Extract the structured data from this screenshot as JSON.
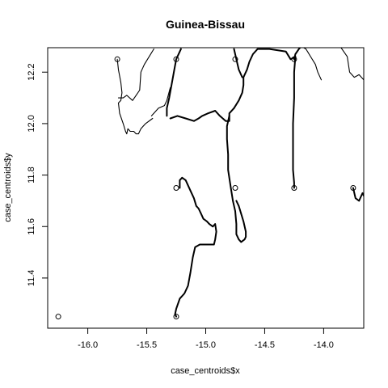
{
  "chart_data": {
    "type": "scatter",
    "title": "Guinea-Bissau",
    "xlabel": "case_centroids$x",
    "ylabel": "case_centroids$y",
    "xlim": [
      -16.34,
      -13.66
    ],
    "ylim": [
      11.205,
      12.295
    ],
    "x_ticks": [
      -16.0,
      -15.5,
      -15.0,
      -14.5,
      -14.0
    ],
    "x_tick_labels": [
      "-16.0",
      "-15.5",
      "-15.0",
      "-14.5",
      "-14.0"
    ],
    "y_ticks": [
      11.4,
      11.6,
      11.8,
      12.0,
      12.2
    ],
    "y_tick_labels": [
      "11.4",
      "11.6",
      "11.8",
      "12.0",
      "12.2"
    ],
    "points": [
      {
        "x": -15.75,
        "y": 12.25
      },
      {
        "x": -15.25,
        "y": 12.25
      },
      {
        "x": -14.75,
        "y": 12.25
      },
      {
        "x": -14.25,
        "y": 12.25
      },
      {
        "x": -15.25,
        "y": 11.75
      },
      {
        "x": -14.75,
        "y": 11.75
      },
      {
        "x": -14.25,
        "y": 11.75
      },
      {
        "x": -13.75,
        "y": 11.75
      },
      {
        "x": -16.25,
        "y": 11.25
      },
      {
        "x": -15.25,
        "y": 11.25
      }
    ],
    "lines": [
      {
        "weight": "thin",
        "coords": [
          [
            -15.75,
            12.25
          ],
          [
            -15.74,
            12.21
          ],
          [
            -15.72,
            12.16
          ],
          [
            -15.71,
            12.12
          ],
          [
            -15.72,
            12.09
          ],
          [
            -15.74,
            12.08
          ],
          [
            -15.73,
            12.04
          ],
          [
            -15.7,
            12.0
          ],
          [
            -15.68,
            11.97
          ],
          [
            -15.67,
            11.96
          ],
          [
            -15.66,
            11.98
          ],
          [
            -15.64,
            11.97
          ],
          [
            -15.61,
            11.97
          ],
          [
            -15.59,
            11.96
          ],
          [
            -15.57,
            11.96
          ],
          [
            -15.55,
            11.98
          ],
          [
            -15.51,
            12.0
          ],
          [
            -15.45,
            12.02
          ]
        ]
      },
      {
        "weight": "thin",
        "coords": [
          [
            -15.74,
            12.1
          ],
          [
            -15.7,
            12.1
          ],
          [
            -15.67,
            12.11
          ],
          [
            -15.62,
            12.09
          ],
          [
            -15.59,
            12.11
          ],
          [
            -15.56,
            12.13
          ],
          [
            -15.55,
            12.2
          ],
          [
            -15.52,
            12.23
          ],
          [
            -15.48,
            12.26
          ],
          [
            -15.44,
            12.29
          ]
        ]
      },
      {
        "weight": "thin",
        "coords": [
          [
            -15.46,
            12.03
          ],
          [
            -15.4,
            12.06
          ],
          [
            -15.35,
            12.07
          ],
          [
            -15.33,
            12.09
          ],
          [
            -15.3,
            12.14
          ]
        ]
      },
      {
        "weight": "thin",
        "coords": [
          [
            -14.19,
            12.3
          ],
          [
            -14.15,
            12.29
          ],
          [
            -14.11,
            12.26
          ],
          [
            -14.07,
            12.23
          ],
          [
            -14.05,
            12.2
          ],
          [
            -14.02,
            12.17
          ]
        ]
      },
      {
        "weight": "thin",
        "coords": [
          [
            -13.86,
            12.3
          ],
          [
            -13.8,
            12.26
          ],
          [
            -13.78,
            12.2
          ],
          [
            -13.74,
            12.18
          ],
          [
            -13.7,
            12.19
          ],
          [
            -13.66,
            12.17
          ]
        ]
      },
      {
        "weight": "thick",
        "coords": [
          [
            -15.21,
            12.29
          ],
          [
            -15.25,
            12.25
          ],
          [
            -15.27,
            12.2
          ],
          [
            -15.29,
            12.15
          ],
          [
            -15.31,
            12.1
          ],
          [
            -15.33,
            12.06
          ],
          [
            -15.33,
            12.03
          ]
        ]
      },
      {
        "weight": "thick",
        "coords": [
          [
            -15.3,
            12.02
          ],
          [
            -15.24,
            12.03
          ],
          [
            -15.17,
            12.02
          ],
          [
            -15.1,
            12.01
          ],
          [
            -15.06,
            12.02
          ],
          [
            -15.03,
            12.03
          ],
          [
            -14.98,
            12.04
          ],
          [
            -14.92,
            12.05
          ],
          [
            -14.88,
            12.03
          ],
          [
            -14.83,
            12.01
          ],
          [
            -14.8,
            12.01
          ],
          [
            -14.8,
            12.04
          ],
          [
            -14.76,
            12.06
          ]
        ]
      },
      {
        "weight": "thick",
        "coords": [
          [
            -14.76,
            12.06
          ],
          [
            -14.72,
            12.09
          ],
          [
            -14.69,
            12.12
          ],
          [
            -14.68,
            12.15
          ],
          [
            -14.68,
            12.18
          ],
          [
            -14.65,
            12.21
          ],
          [
            -14.63,
            12.24
          ],
          [
            -14.6,
            12.27
          ],
          [
            -14.56,
            12.29
          ],
          [
            -14.46,
            12.29
          ],
          [
            -14.32,
            12.28
          ],
          [
            -14.28,
            12.25
          ],
          [
            -14.24,
            12.26
          ]
        ]
      },
      {
        "weight": "thick",
        "coords": [
          [
            -14.25,
            12.25
          ],
          [
            -14.24,
            12.27
          ],
          [
            -14.21,
            12.29
          ],
          [
            -14.19,
            12.3
          ]
        ]
      },
      {
        "weight": "thick",
        "coords": [
          [
            -14.76,
            12.29
          ],
          [
            -14.74,
            12.25
          ],
          [
            -14.72,
            12.21
          ],
          [
            -14.69,
            12.18
          ]
        ]
      },
      {
        "weight": "thick",
        "coords": [
          [
            -14.8,
            12.03
          ],
          [
            -14.82,
            11.99
          ],
          [
            -14.82,
            11.94
          ],
          [
            -14.81,
            11.88
          ],
          [
            -14.81,
            11.82
          ],
          [
            -14.79,
            11.76
          ],
          [
            -14.77,
            11.7
          ],
          [
            -14.75,
            11.66
          ],
          [
            -14.74,
            11.61
          ],
          [
            -14.74,
            11.57
          ],
          [
            -14.72,
            11.55
          ],
          [
            -14.7,
            11.54
          ],
          [
            -14.67,
            11.55
          ],
          [
            -14.66,
            11.56
          ],
          [
            -14.66,
            11.58
          ],
          [
            -14.68,
            11.62
          ],
          [
            -14.7,
            11.65
          ],
          [
            -14.72,
            11.68
          ],
          [
            -14.74,
            11.7
          ]
        ]
      },
      {
        "weight": "thick",
        "coords": [
          [
            -14.24,
            12.26
          ],
          [
            -14.25,
            12.2
          ],
          [
            -14.25,
            12.1
          ],
          [
            -14.26,
            12.0
          ],
          [
            -14.26,
            11.9
          ],
          [
            -14.26,
            11.82
          ],
          [
            -14.25,
            11.77
          ],
          [
            -14.25,
            11.75
          ]
        ]
      },
      {
        "weight": "thick",
        "coords": [
          [
            -15.22,
            11.75
          ],
          [
            -15.22,
            11.78
          ],
          [
            -15.2,
            11.79
          ],
          [
            -15.17,
            11.78
          ],
          [
            -15.13,
            11.74
          ],
          [
            -15.1,
            11.71
          ],
          [
            -15.08,
            11.68
          ],
          [
            -15.06,
            11.67
          ],
          [
            -15.04,
            11.65
          ],
          [
            -15.02,
            11.63
          ],
          [
            -14.99,
            11.62
          ],
          [
            -14.97,
            11.61
          ],
          [
            -14.94,
            11.6
          ],
          [
            -14.92,
            11.61
          ],
          [
            -14.91,
            11.58
          ],
          [
            -14.92,
            11.55
          ],
          [
            -14.93,
            11.53
          ],
          [
            -14.97,
            11.53
          ],
          [
            -15.0,
            11.53
          ],
          [
            -15.05,
            11.53
          ],
          [
            -15.09,
            11.52
          ],
          [
            -15.11,
            11.48
          ],
          [
            -15.13,
            11.42
          ],
          [
            -15.15,
            11.37
          ],
          [
            -15.18,
            11.34
          ],
          [
            -15.22,
            11.32
          ],
          [
            -15.25,
            11.28
          ],
          [
            -15.26,
            11.26
          ],
          [
            -15.25,
            11.25
          ]
        ]
      },
      {
        "weight": "thick",
        "coords": [
          [
            -13.75,
            11.75
          ],
          [
            -13.73,
            11.71
          ],
          [
            -13.7,
            11.7
          ],
          [
            -13.67,
            11.73
          ],
          [
            -13.66,
            11.72
          ]
        ]
      }
    ],
    "grid": false,
    "legend": "none"
  }
}
